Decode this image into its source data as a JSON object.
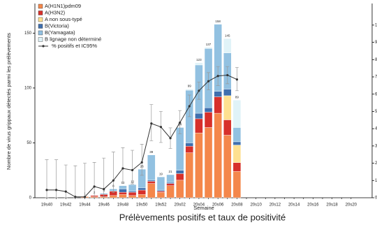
{
  "chart_data": {
    "type": "bar",
    "title": "Prélèvements positifs et taux de positivité",
    "x_label": "Semaine",
    "y_label": "Nombre de virus grippaux détectés parmi les prélèvements",
    "categories": [
      "19s40",
      null,
      "19s42",
      null,
      "19s44",
      null,
      "19s46",
      null,
      "19s48",
      null,
      "19s50",
      null,
      "19s52",
      null,
      "20s02",
      null,
      "20s04",
      null,
      "20s06",
      null,
      "20s08",
      null,
      "20s10",
      null,
      "20s12",
      null,
      "20s14",
      null,
      "20s16",
      null,
      "20s18",
      null,
      "20s20"
    ],
    "ylim": [
      0,
      177
    ],
    "yticks": [
      0,
      50,
      100,
      150
    ],
    "y2lim": [
      0,
      11.25
    ],
    "y2ticks": [
      0,
      1,
      2,
      3,
      4,
      5,
      6,
      7,
      8,
      9,
      10
    ],
    "totals": [
      null,
      null,
      null,
      null,
      1,
      2,
      4,
      8,
      11,
      12,
      26,
      39,
      19,
      21,
      64,
      99,
      123,
      137,
      158,
      145,
      89,
      null,
      null,
      null,
      null,
      null,
      null,
      null,
      null,
      null,
      null,
      null,
      null
    ],
    "series": [
      {
        "name": "A(H1N1)pdm09",
        "color": "#f4874b",
        "values": [
          0,
          0,
          0,
          0,
          1,
          1,
          1,
          2,
          3,
          2,
          3,
          13,
          5,
          11,
          16,
          41,
          59,
          64,
          77,
          57,
          24,
          null,
          null,
          null,
          null,
          null,
          null,
          null,
          null,
          null,
          null,
          null,
          null
        ]
      },
      {
        "name": "A(H3N2)",
        "color": "#d7302a",
        "values": [
          0,
          0,
          0,
          0,
          0,
          1,
          2,
          4,
          2,
          3,
          4,
          2,
          1,
          2,
          6,
          6,
          13,
          14,
          15,
          14,
          8,
          null,
          null,
          null,
          null,
          null,
          null,
          null,
          null,
          null,
          null,
          null,
          null
        ]
      },
      {
        "name": "A non sous-typé",
        "color": "#fee090",
        "values": [
          0,
          0,
          0,
          0,
          0,
          0,
          0,
          0,
          0,
          0,
          0,
          0,
          0,
          0,
          0,
          0,
          0,
          0,
          0,
          22,
          16,
          null,
          null,
          null,
          null,
          null,
          null,
          null,
          null,
          null,
          null,
          null,
          null
        ]
      },
      {
        "name": "B(Victoria)",
        "color": "#3f6fae",
        "values": [
          0,
          0,
          0,
          0,
          0,
          0,
          0,
          0,
          3,
          1,
          2,
          1,
          1,
          1,
          3,
          3,
          5,
          4,
          5,
          6,
          3,
          null,
          null,
          null,
          null,
          null,
          null,
          null,
          null,
          null,
          null,
          null,
          null
        ]
      },
      {
        "name": "B(Yamagata)",
        "color": "#92c1e1",
        "values": [
          0,
          0,
          0,
          0,
          0,
          0,
          1,
          2,
          3,
          6,
          17,
          23,
          12,
          7,
          39,
          48,
          44,
          54,
          61,
          33,
          13,
          null,
          null,
          null,
          null,
          null,
          null,
          null,
          null,
          null,
          null,
          null,
          null
        ]
      },
      {
        "name": "B lignage non déterminé",
        "color": "#e0f3f8",
        "values": [
          0,
          0,
          0,
          0,
          0,
          0,
          0,
          0,
          0,
          0,
          0,
          0,
          0,
          0,
          0,
          1,
          2,
          1,
          0,
          13,
          25,
          null,
          null,
          null,
          null,
          null,
          null,
          null,
          null,
          null,
          null,
          null,
          null
        ]
      },
      {
        "name": "% positifs et IC95%",
        "type": "line",
        "axis": "y2",
        "color": "#333333",
        "values": [
          0.45,
          0.45,
          0.36,
          0.05,
          0.05,
          0.65,
          0.5,
          1.0,
          1.7,
          1.6,
          2.05,
          4.3,
          4.1,
          3.45,
          4.35,
          5.3,
          6.2,
          6.75,
          7.05,
          7.1,
          6.85,
          null,
          null,
          null,
          null,
          null,
          null,
          null,
          null,
          null,
          null,
          null,
          null
        ],
        "ci_low": [
          0,
          0,
          0,
          0,
          0,
          0,
          0.05,
          0.3,
          0.9,
          0.8,
          1.3,
          3.3,
          3.2,
          2.85,
          3.7,
          4.7,
          5.7,
          6.25,
          6.5,
          6.6,
          6.2,
          null,
          null,
          null,
          null,
          null,
          null,
          null,
          null,
          null,
          null,
          null,
          null
        ],
        "ci_high": [
          2.2,
          2.2,
          1.9,
          1.85,
          2.0,
          2.05,
          2.3,
          2.65,
          2.9,
          2.75,
          3.1,
          5.4,
          5.0,
          4.05,
          5.05,
          5.95,
          6.7,
          7.25,
          7.6,
          7.6,
          7.55,
          null,
          null,
          null,
          null,
          null,
          null,
          null,
          null,
          null,
          null,
          null,
          null
        ]
      }
    ]
  }
}
